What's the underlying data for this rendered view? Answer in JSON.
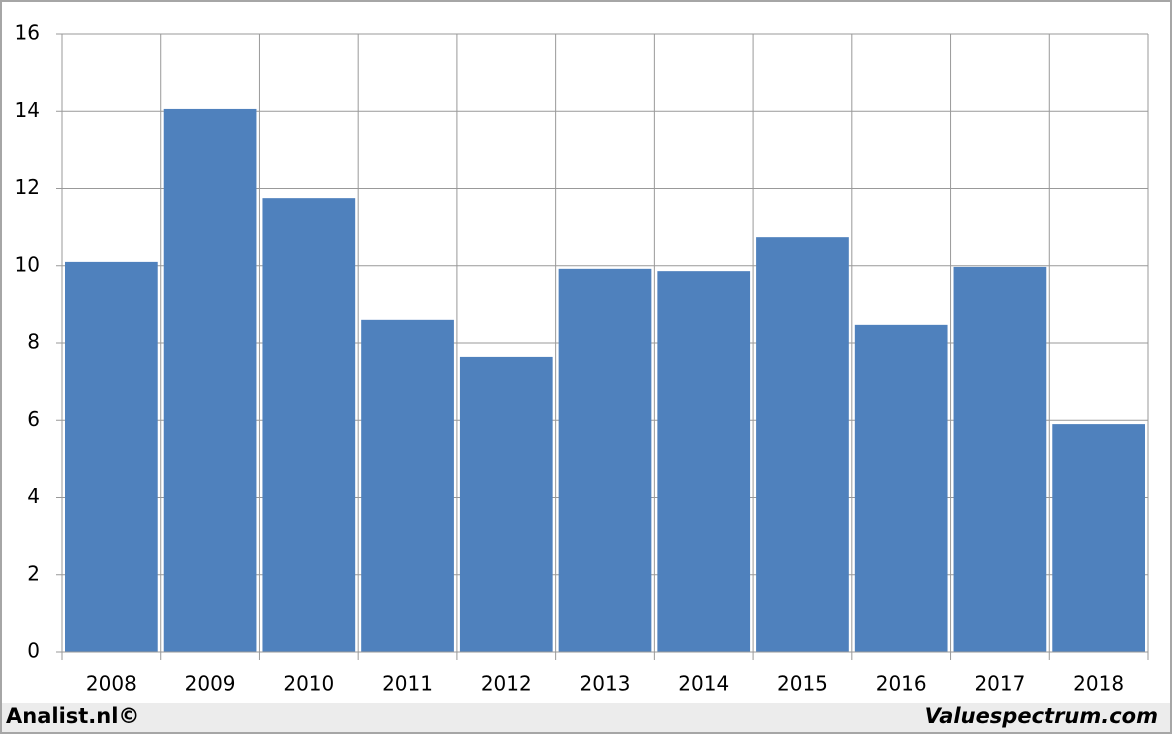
{
  "chart_data": {
    "type": "bar",
    "categories": [
      "2008",
      "2009",
      "2010",
      "2011",
      "2012",
      "2013",
      "2014",
      "2015",
      "2016",
      "2017",
      "2018"
    ],
    "values": [
      10.1,
      14.06,
      11.75,
      8.6,
      7.64,
      9.92,
      9.86,
      10.74,
      8.47,
      9.97,
      5.9
    ],
    "color": "#4f81bd",
    "ylim": [
      0,
      16
    ],
    "yticks": [
      0,
      2,
      4,
      6,
      8,
      10,
      12,
      14,
      16
    ],
    "grid": true,
    "annotations": [
      "Analist.nl©",
      "Valuespectrum.com"
    ]
  }
}
